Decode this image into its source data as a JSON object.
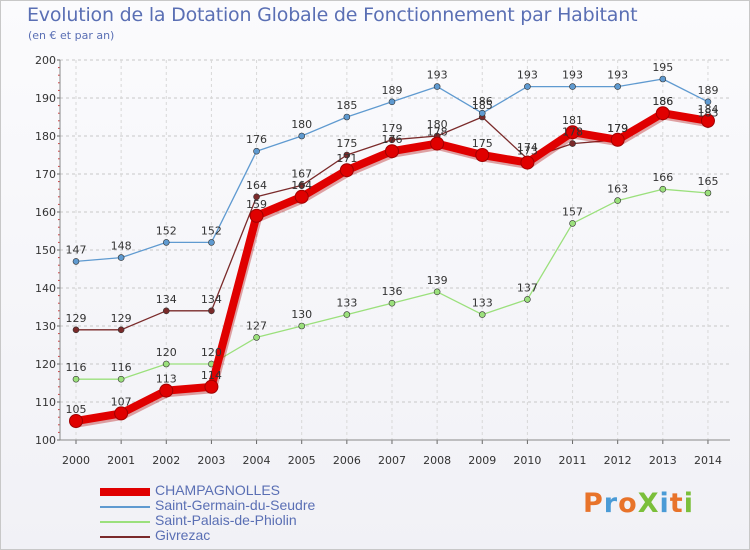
{
  "title": "Evolution de la Dotation Globale de Fonctionnement par Habitant",
  "subtitle": "(en € et par an)",
  "logo": {
    "text": "ProXiti",
    "colors": [
      "#e8732a",
      "#4a9bd6",
      "#e8732a",
      "#7bbf3a",
      "#4a9bd6",
      "#e8732a",
      "#7bbf3a"
    ]
  },
  "chart_data": {
    "type": "line",
    "title": "Evolution de la Dotation Globale de Fonctionnement par Habitant",
    "ylabel": "(en € et par an)",
    "xlabel": "",
    "ylim": [
      100,
      200
    ],
    "yticks": [
      100,
      110,
      120,
      130,
      140,
      150,
      160,
      170,
      180,
      190,
      200
    ],
    "grid": "horizontal-dashed",
    "legend_position": "bottom-left",
    "categories": [
      "2000",
      "2001",
      "2002",
      "2003",
      "2004",
      "2005",
      "2006",
      "2007",
      "2008",
      "2009",
      "2010",
      "2011",
      "2012",
      "2013",
      "2014"
    ],
    "series": [
      {
        "name": "CHAMPAGNOLLES",
        "color": "#e00000",
        "values": [
          105,
          107,
          113,
          114,
          159,
          164,
          171,
          176,
          178,
          175,
          173,
          181,
          179,
          186,
          184
        ]
      },
      {
        "name": "Saint-Germain-du-Seudre",
        "color": "#5f9ad0",
        "values": [
          147,
          148,
          152,
          152,
          176,
          180,
          185,
          189,
          193,
          186,
          193,
          193,
          193,
          195,
          189
        ]
      },
      {
        "name": "Saint-Palais-de-Phiolin",
        "color": "#9be07c",
        "values": [
          116,
          116,
          120,
          120,
          127,
          130,
          133,
          136,
          139,
          133,
          137,
          157,
          163,
          166,
          165
        ]
      },
      {
        "name": "Givrezac",
        "color": "#7a2a2a",
        "values": [
          129,
          129,
          134,
          134,
          164,
          167,
          175,
          179,
          180,
          185,
          174,
          178,
          179,
          186,
          183
        ]
      }
    ]
  }
}
